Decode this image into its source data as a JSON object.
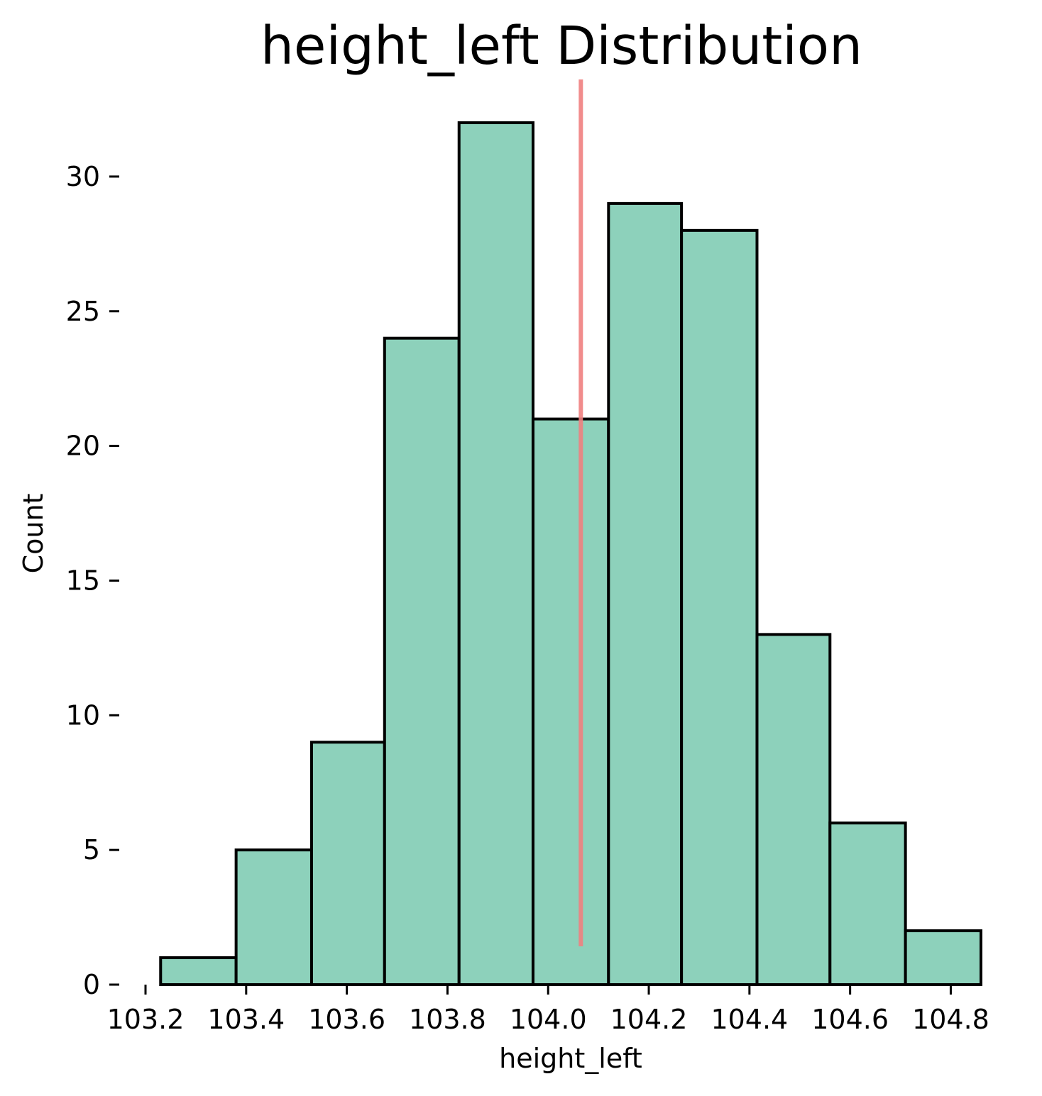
{
  "chart_data": {
    "type": "bar",
    "title": "height_left Distribution",
    "xlabel": "height_left",
    "ylabel": "Count",
    "bins": [
      {
        "x0": 103.23,
        "x1": 103.38,
        "count": 1
      },
      {
        "x0": 103.38,
        "x1": 103.53,
        "count": 5
      },
      {
        "x0": 103.53,
        "x1": 103.675,
        "count": 9
      },
      {
        "x0": 103.675,
        "x1": 103.823,
        "count": 24
      },
      {
        "x0": 103.823,
        "x1": 103.97,
        "count": 32
      },
      {
        "x0": 103.97,
        "x1": 104.12,
        "count": 21
      },
      {
        "x0": 104.12,
        "x1": 104.265,
        "count": 29
      },
      {
        "x0": 104.265,
        "x1": 104.415,
        "count": 28
      },
      {
        "x0": 104.415,
        "x1": 104.56,
        "count": 13
      },
      {
        "x0": 104.56,
        "x1": 104.71,
        "count": 6
      },
      {
        "x0": 104.71,
        "x1": 104.86,
        "count": 2
      }
    ],
    "mean_line": {
      "x": 104.065,
      "color": "#f08080"
    },
    "xlim": [
      103.2,
      104.86
    ],
    "ylim": [
      0,
      32
    ],
    "xticks": [
      103.2,
      103.4,
      103.6,
      103.8,
      104.0,
      104.2,
      104.4,
      104.6,
      104.8
    ],
    "xtick_labels": [
      "103.2",
      "103.4",
      "103.6",
      "103.8",
      "104.0",
      "104.2",
      "104.4",
      "104.6",
      "104.8"
    ],
    "yticks": [
      0,
      5,
      10,
      15,
      20,
      25,
      30
    ],
    "ytick_labels": [
      "0",
      "5",
      "10",
      "15",
      "20",
      "25",
      "30"
    ],
    "bar_color": "#8dd1bb",
    "edge_color": "#000000",
    "grid": false
  }
}
